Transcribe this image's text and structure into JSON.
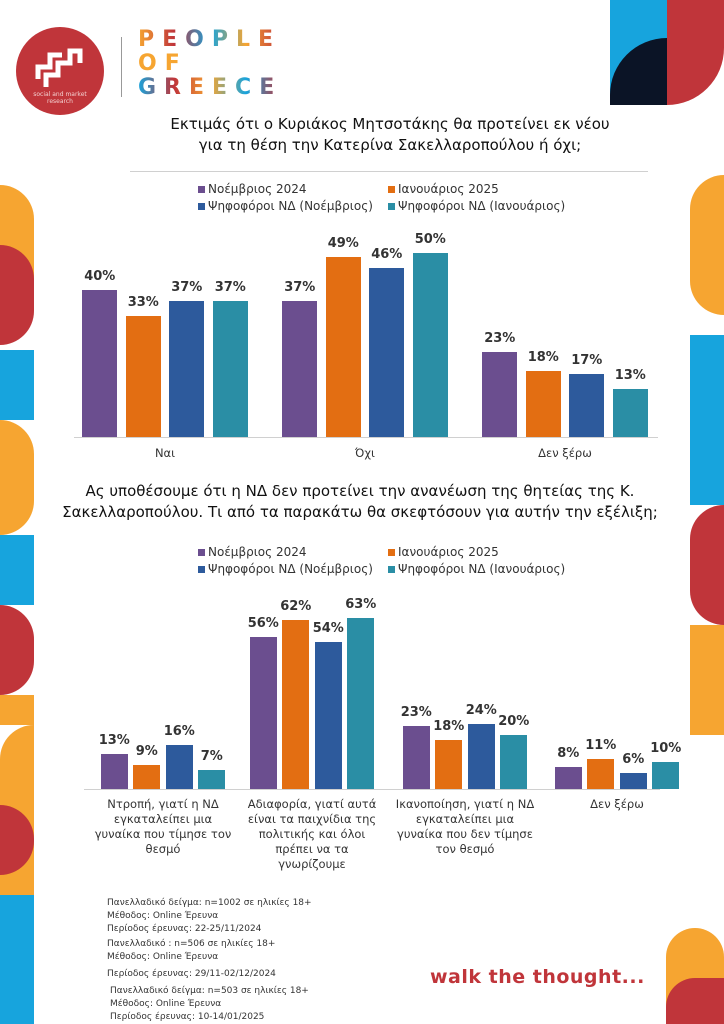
{
  "header": {
    "logo_text": "social and market research",
    "brand_lines": [
      "PEOPLE",
      "OF",
      "GREECE"
    ]
  },
  "colors": {
    "nov_2024": "#6B4E8F",
    "jan_2025": "#E36E12",
    "nd_nov": "#2D5A9C",
    "nd_jan": "#2A8EA5",
    "brand_red": "#C0353A",
    "brand_orange": "#F6A531",
    "brand_blue": "#17A4DD",
    "brand_navy": "#0B1426"
  },
  "chart_data": [
    {
      "type": "bar",
      "title": "Εκτιμάς ότι ο Κυριάκος Μητσοτάκης θα προτείνει εκ νέου για τη θέση την Κατερίνα Σακελλαροπούλου ή όχι;",
      "title_lines": [
        "Εκτιμάς ότι ο Κυριάκος Μητσοτάκης θα προτείνει εκ νέου",
        "για τη θέση την Κατερίνα Σακελλαροπούλου ή όχι;"
      ],
      "categories": [
        "Ναι",
        "Όχι",
        "Δεν ξέρω"
      ],
      "legend_position": "top",
      "series": [
        {
          "name": "Νοέμβριος 2024",
          "color": "#6B4E8F",
          "values": [
            40,
            37,
            23
          ]
        },
        {
          "name": "Ιανουάριος 2025",
          "color": "#E36E12",
          "values": [
            33,
            49,
            18
          ]
        },
        {
          "name": "Ψηφοφόροι ΝΔ (Νοέμβριος)",
          "color": "#2D5A9C",
          "values": [
            37,
            46,
            17
          ]
        },
        {
          "name": "Ψηφοφόροι ΝΔ (Ιανουάριος)",
          "color": "#2A8EA5",
          "values": [
            37,
            50,
            13
          ]
        }
      ],
      "unit": "%",
      "grid": false
    },
    {
      "type": "bar",
      "title": "Ας υποθέσουμε ότι η ΝΔ δεν προτείνει την ανανέωση της θητείας της Κ. Σακελλαροπούλου. Τι από τα παρακάτω θα σκεφτόσουν για αυτήν την εξέλιξη;",
      "title_lines": [
        "Ας υποθέσουμε ότι η ΝΔ δεν προτείνει την ανανέωση της θητείας της Κ.",
        "Σακελλαροπούλου. Τι από τα παρακάτω θα σκεφτόσουν για αυτήν την εξέλιξη;"
      ],
      "categories": [
        "Ντροπή, γιατί η ΝΔ εγκαταλείπει μια γυναίκα που τίμησε τον θεσμό",
        "Αδιαφορία, γιατί αυτά είναι τα παιχνίδια της πολιτικής και όλοι πρέπει να τα γνωρίζουμε",
        "Ικανοποίηση, γιατί η ΝΔ εγκαταλείπει μια γυναίκα που δεν τίμησε τον θεσμό",
        "Δεν ξέρω"
      ],
      "legend_position": "top",
      "series": [
        {
          "name": "Νοέμβριος 2024",
          "color": "#6B4E8F",
          "values": [
            13,
            56,
            23,
            8
          ]
        },
        {
          "name": "Ιανουάριος 2025",
          "color": "#E36E12",
          "values": [
            9,
            62,
            18,
            11
          ]
        },
        {
          "name": "Ψηφοφόροι ΝΔ (Νοέμβριος)",
          "color": "#2D5A9C",
          "values": [
            16,
            54,
            24,
            6
          ]
        },
        {
          "name": "Ψηφοφόροι ΝΔ (Ιανουάριος)",
          "color": "#2A8EA5",
          "values": [
            7,
            63,
            20,
            10
          ]
        }
      ],
      "unit": "%",
      "grid": false
    }
  ],
  "notes": [
    "Πανελλαδικό δείγμα: n=1002 σε ηλικίες 18+",
    "Μέθοδος: Online Έρευνα",
    "Περίοδος έρευνας: 22-25/11/2024",
    "Πανελλαδικό : n=506 σε ηλικίες 18+",
    "Μέθοδος: Online Έρευνα",
    "Περίοδος έρευνας:  29/11-02/12/2024",
    "Πανελλαδικό δείγμα: n=503 σε ηλικίες 18+",
    "Μέθοδος: Online Έρευνα",
    "Περίοδος έρευνας: 10-14/01/2025"
  ],
  "tagline": "walk the thought..."
}
